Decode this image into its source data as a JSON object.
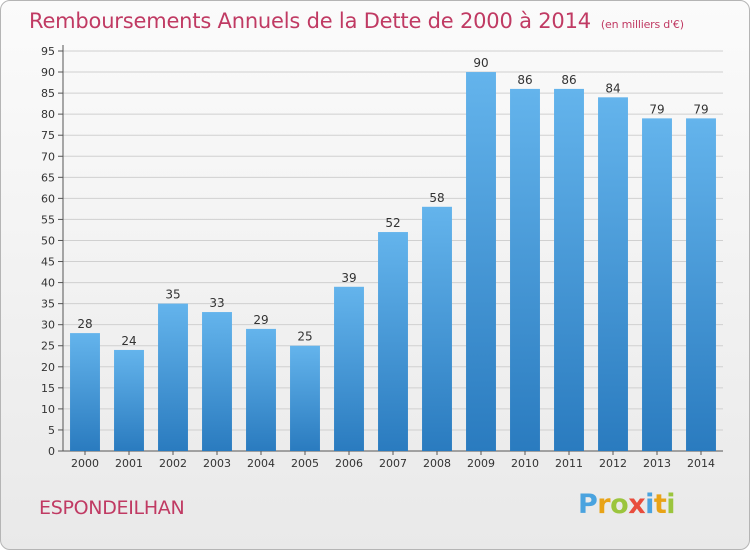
{
  "title": "Remboursements Annuels de la Dette de 2000 à 2014",
  "subtitle": "(en milliers d'€)",
  "commune": "ESPONDEILHAN",
  "logo": {
    "letters": [
      "P",
      "r",
      "o",
      "x",
      "i",
      "t",
      "i"
    ],
    "colors": [
      "#4aa3df",
      "#e8a317",
      "#9bc53d",
      "#e84d3d",
      "#4aa3df",
      "#e8a317",
      "#9bc53d"
    ]
  },
  "colors": {
    "bar_top": "#64b4ec",
    "bar_bottom": "#2a7bbf",
    "title": "#c03a63",
    "grid": "#d0d0d0"
  },
  "chart_data": {
    "type": "bar",
    "title": "Remboursements Annuels de la Dette de 2000 à 2014",
    "ylabel": "en milliers d'€",
    "xlabel": "",
    "categories": [
      "2000",
      "2001",
      "2002",
      "2003",
      "2004",
      "2005",
      "2006",
      "2007",
      "2008",
      "2009",
      "2010",
      "2011",
      "2012",
      "2013",
      "2014"
    ],
    "values": [
      28,
      24,
      35,
      33,
      29,
      25,
      39,
      52,
      58,
      90,
      86,
      86,
      84,
      79,
      79
    ],
    "ylim": [
      0,
      95
    ],
    "yticks": [
      0,
      5,
      10,
      15,
      20,
      25,
      30,
      35,
      40,
      45,
      50,
      55,
      60,
      65,
      70,
      75,
      80,
      85,
      90,
      95
    ],
    "grid": true
  }
}
